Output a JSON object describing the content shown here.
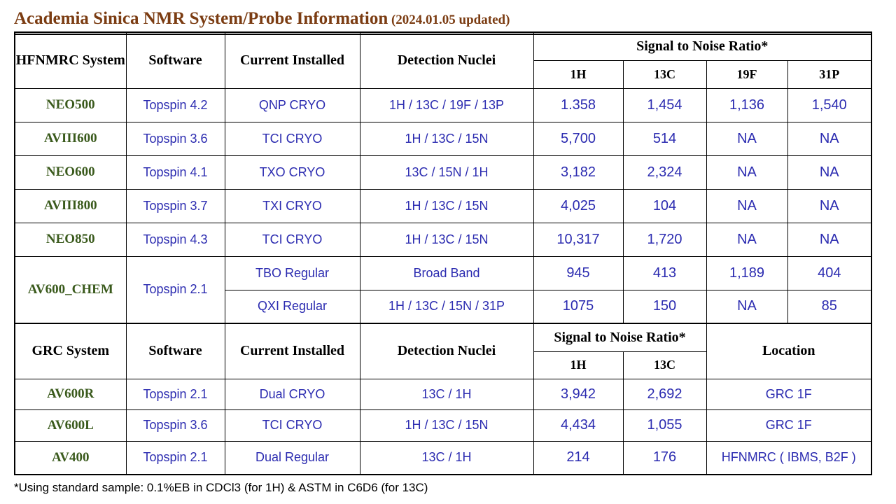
{
  "title": {
    "main": "Academia Sinica NMR System/Probe Information",
    "updated": " (2024.01.05 updated)"
  },
  "table1": {
    "headers": {
      "system": "HFNMRC System",
      "software": "Software",
      "current": "Current Installed",
      "nuclei": "Detection Nuclei",
      "sn": "Signal to Noise Ratio*",
      "h1": "1H",
      "c13": "13C",
      "f19": "19F",
      "p31": "31P"
    },
    "rows": [
      {
        "system": "NEO500",
        "software": "Topspin 4.2",
        "probe": "QNP CRYO",
        "nuclei": "1H / 13C / 19F / 13P",
        "h1": "1.358",
        "c13": "1,454",
        "f19": "1,136",
        "p31": "1,540"
      },
      {
        "system": "AVIII600",
        "software": "Topspin 3.6",
        "probe": "TCI CRYO",
        "nuclei": "1H / 13C / 15N",
        "h1": "5,700",
        "c13": "514",
        "f19": "NA",
        "p31": "NA"
      },
      {
        "system": "NEO600",
        "software": "Topspin 4.1",
        "probe": "TXO CRYO",
        "nuclei": "13C / 15N / 1H",
        "h1": "3,182",
        "c13": "2,324",
        "f19": "NA",
        "p31": "NA"
      },
      {
        "system": "AVIII800",
        "software": "Topspin 3.7",
        "probe": "TXI CRYO",
        "nuclei": "1H / 13C / 15N",
        "h1": "4,025",
        "c13": "104",
        "f19": "NA",
        "p31": "NA"
      },
      {
        "system": "NEO850",
        "software": "Topspin 4.3",
        "probe": "TCI CRYO",
        "nuclei": "1H / 13C / 15N",
        "h1": "10,317",
        "c13": "1,720",
        "f19": "NA",
        "p31": "NA"
      }
    ],
    "chem": {
      "system": "AV600_CHEM",
      "software": "Topspin 2.1",
      "probes": [
        {
          "probe": "TBO Regular",
          "nuclei": "Broad Band",
          "h1": "945",
          "c13": "413",
          "f19": "1,189",
          "p31": "404"
        },
        {
          "probe": "QXI Regular",
          "nuclei": "1H / 13C / 15N / 31P",
          "h1": "1075",
          "c13": "150",
          "f19": "NA",
          "p31": "85"
        }
      ]
    }
  },
  "table2": {
    "headers": {
      "system": "GRC System",
      "software": "Software",
      "current": "Current Installed",
      "nuclei": "Detection Nuclei",
      "sn": "Signal to Noise Ratio*",
      "h1": "1H",
      "c13": "13C",
      "location": "Location"
    },
    "rows": [
      {
        "system": "AV600R",
        "software": "Topspin 2.1",
        "probe": "Dual CRYO",
        "nuclei": "13C / 1H",
        "h1": "3,942",
        "c13": "2,692",
        "location": "GRC 1F"
      },
      {
        "system": "AV600L",
        "software": "Topspin 3.6",
        "probe": "TCI CRYO",
        "nuclei": "1H / 13C / 15N",
        "h1": "4,434",
        "c13": "1,055",
        "location": "GRC 1F"
      },
      {
        "system": "AV400",
        "software": "Topspin 2.1",
        "probe": "Dual Regular",
        "nuclei": "13C / 1H",
        "h1": "214",
        "c13": "176",
        "location": "HFNMRC ( IBMS, B2F )"
      }
    ]
  },
  "footnote": "*Using standard sample: 0.1%EB in CDCl3 (for 1H) & ASTM in C6D6 (for 13C)"
}
